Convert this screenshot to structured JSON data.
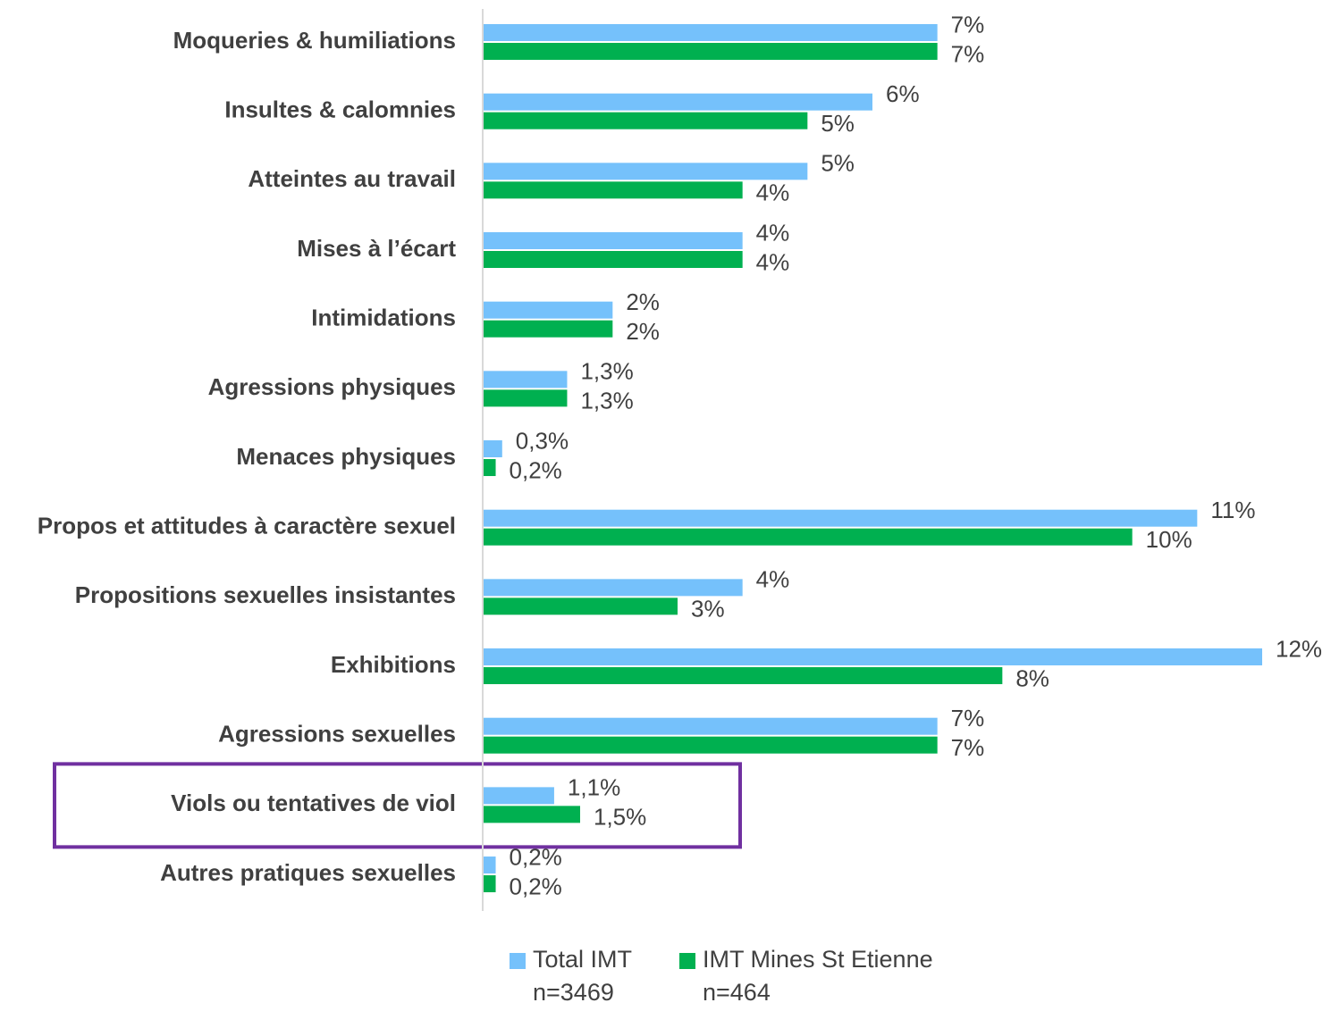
{
  "chart_data": {
    "type": "bar",
    "orientation": "horizontal",
    "categories": [
      "Moqueries & humiliations",
      "Insultes & calomnies",
      "Atteintes au travail",
      "Mises à l’écart",
      "Intimidations",
      "Agressions physiques",
      "Menaces physiques",
      "Propos et attitudes à caractère sexuel",
      "Propositions sexuelles insistantes",
      "Exhibitions",
      "Agressions sexuelles",
      "Viols ou tentatives de viol",
      "Autres pratiques sexuelles"
    ],
    "series": [
      {
        "name": "Total IMT",
        "sample": "n=3469",
        "color": "#75c1fb",
        "values": [
          7,
          6,
          5,
          4,
          2,
          1.3,
          0.3,
          11,
          4,
          12,
          7,
          1.1,
          0.2
        ],
        "value_labels": [
          "7%",
          "6%",
          "5%",
          "4%",
          "2%",
          "1,3%",
          "0,3%",
          "11%",
          "4%",
          "12%",
          "7%",
          "1,1%",
          "0,2%"
        ]
      },
      {
        "name": "IMT Mines St Etienne",
        "sample": "n=464",
        "color": "#00b050",
        "values": [
          7,
          5,
          4,
          4,
          2,
          1.3,
          0.2,
          10,
          3,
          8,
          7,
          1.5,
          0.2
        ],
        "value_labels": [
          "7%",
          "5%",
          "4%",
          "4%",
          "2%",
          "1,3%",
          "0,2%",
          "10%",
          "3%",
          "8%",
          "7%",
          "1,5%",
          "0,2%"
        ]
      }
    ],
    "xlim": [
      0,
      12
    ],
    "grid": false,
    "legend": "bottom"
  }
}
